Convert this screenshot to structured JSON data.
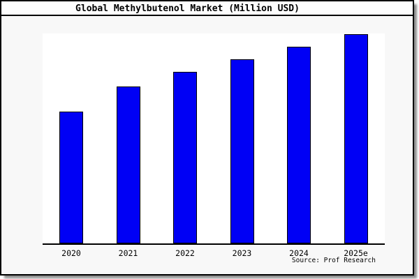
{
  "header": {
    "title": "Global Methylbutenol Market (Million USD)"
  },
  "footer": {
    "source": "Source: Prof Research"
  },
  "colors": {
    "bar_fill": "#0000f5",
    "bar_border": "#000000",
    "plot_bg": "#ffffff",
    "panel_bg": "#f8f8f8",
    "title_bg": "#fdfdfd",
    "frame": "#000000",
    "shadow": "#8f8f8f",
    "text": "#000000"
  },
  "chart_data": {
    "type": "bar",
    "title": "Global Methylbutenol Market (Million USD)",
    "categories": [
      "2020",
      "2021",
      "2022",
      "2023",
      "2024",
      "2025e"
    ],
    "values": [
      63,
      75,
      82,
      88,
      94,
      100
    ],
    "values_note": "No y-axis, gridlines or data labels are shown in the image; values are estimated relative bar heights as a percentage of the tallest bar (2025e = 100).",
    "xlabel": "",
    "ylabel": "",
    "ylim": [
      0,
      100
    ],
    "grid": false,
    "legend": false,
    "y_axis_visible": false,
    "x_axis_visible": true,
    "annotations": [
      "Source: Prof Research"
    ]
  }
}
